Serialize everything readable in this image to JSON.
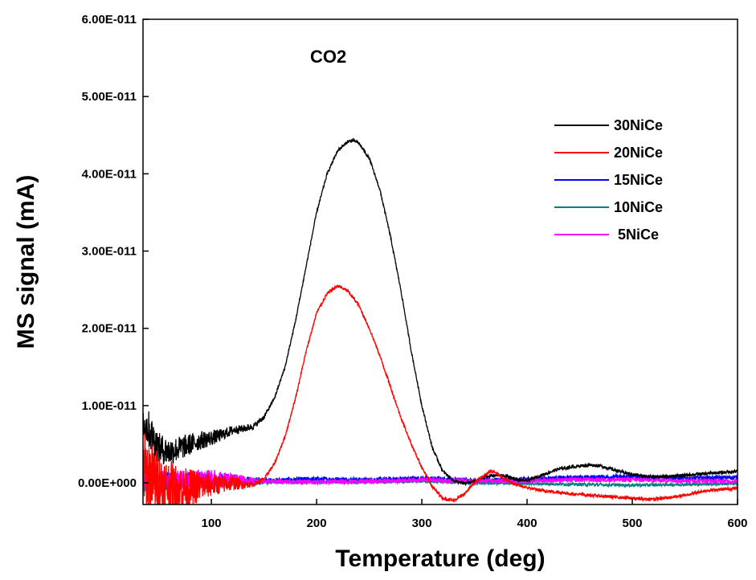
{
  "chart_data": {
    "type": "line",
    "xlabel": "Temperature (deg)",
    "ylabel": "MS signal (mA)",
    "annotation": "CO2",
    "xlim": [
      35,
      600
    ],
    "ylim": [
      -2.8e-12,
      6e-11
    ],
    "x_ticks": [
      100,
      200,
      300,
      400,
      500,
      600
    ],
    "y_ticks": [
      0,
      1e-11,
      2e-11,
      3e-11,
      4e-11,
      5e-11,
      6e-11
    ],
    "y_tick_labels": [
      "0.00E+000",
      "1.00E-011",
      "2.00E-011",
      "3.00E-011",
      "4.00E-011",
      "5.00E-011",
      "6.00E-011"
    ],
    "x_tick_labels": [
      "100",
      "200",
      "300",
      "400",
      "500",
      "600"
    ],
    "grid": false,
    "legend_position": "top-right",
    "series": [
      {
        "name": "30NiCe",
        "color": "#000000",
        "x": [
          35,
          40,
          50,
          60,
          70,
          80,
          90,
          100,
          110,
          120,
          130,
          140,
          150,
          160,
          170,
          180,
          190,
          200,
          210,
          220,
          230,
          235,
          240,
          250,
          260,
          270,
          280,
          290,
          300,
          310,
          320,
          330,
          340,
          350,
          360,
          370,
          380,
          390,
          400,
          410,
          420,
          430,
          440,
          450,
          460,
          470,
          480,
          490,
          500,
          510,
          520,
          530,
          540,
          550,
          560,
          570,
          580,
          590,
          600
        ],
        "y": [
          8e-12,
          7e-12,
          4.5e-12,
          4e-12,
          4.5e-12,
          5e-12,
          5.5e-12,
          5.8e-12,
          6.2e-12,
          6.8e-12,
          7e-12,
          7.3e-12,
          8.5e-12,
          1.1e-11,
          1.5e-11,
          2.1e-11,
          2.8e-11,
          3.5e-11,
          4e-11,
          4.3e-11,
          4.42e-11,
          4.43e-11,
          4.4e-11,
          4.2e-11,
          3.8e-11,
          3.2e-11,
          2.5e-11,
          1.7e-11,
          1e-11,
          4.5e-12,
          1.5e-12,
          3e-13,
          -1e-13,
          2e-13,
          8e-13,
          1e-12,
          9e-13,
          4e-13,
          3e-13,
          8e-13,
          1.3e-12,
          1.8e-12,
          2e-12,
          2.2e-12,
          2.3e-12,
          2.2e-12,
          1.8e-12,
          1.4e-12,
          1.1e-12,
          9e-13,
          8e-13,
          8e-13,
          9e-13,
          1e-12,
          1.1e-12,
          1.2e-12,
          1.3e-12,
          1.4e-12,
          1.5e-12
        ],
        "noise": [
          2.5e-12,
          2.5e-12,
          2e-12,
          1.8e-12,
          1.6e-12,
          1.4e-12,
          1.2e-12,
          1e-12,
          8e-13,
          6e-13,
          5e-13,
          4e-13,
          3e-13,
          2e-13,
          2e-13,
          2e-13,
          2e-13,
          2e-13,
          2e-13,
          2e-13,
          2e-13,
          2e-13,
          2e-13,
          2e-13,
          2e-13,
          2e-13,
          2e-13,
          2e-13,
          2e-13,
          2e-13,
          2e-13,
          2e-13,
          2e-13,
          2e-13,
          2e-13,
          2e-13,
          2e-13,
          2e-13,
          2e-13,
          2e-13,
          2e-13,
          2e-13,
          2e-13,
          2e-13,
          2e-13,
          2e-13,
          2e-13,
          2e-13,
          2e-13,
          2e-13,
          2e-13,
          2e-13,
          2e-13,
          2e-13,
          2e-13,
          2e-13,
          2e-13,
          2e-13,
          2e-13
        ]
      },
      {
        "name": "20NiCe",
        "color": "#ff0000",
        "x": [
          35,
          40,
          50,
          60,
          70,
          80,
          90,
          100,
          110,
          120,
          130,
          140,
          150,
          160,
          170,
          180,
          190,
          200,
          210,
          220,
          230,
          240,
          250,
          260,
          270,
          280,
          290,
          300,
          310,
          320,
          330,
          340,
          350,
          360,
          365,
          370,
          380,
          390,
          400,
          410,
          420,
          430,
          440,
          450,
          460,
          470,
          480,
          490,
          500,
          510,
          520,
          530,
          540,
          550,
          560,
          570,
          580,
          590,
          600
        ],
        "y": [
          2e-12,
          1e-12,
          0,
          -5e-13,
          -8e-13,
          -7e-13,
          -4e-13,
          -3e-13,
          -2e-13,
          0,
          -2e-13,
          -2e-13,
          5e-13,
          2.5e-12,
          6e-12,
          1.1e-11,
          1.7e-11,
          2.2e-11,
          2.45e-11,
          2.55e-11,
          2.48e-11,
          2.3e-11,
          2e-11,
          1.65e-11,
          1.25e-11,
          8.5e-12,
          5e-12,
          2e-12,
          -5e-13,
          -2e-12,
          -2.3e-12,
          -1.5e-12,
          0,
          1e-12,
          1.5e-12,
          1.3e-12,
          4e-13,
          -3e-13,
          -6e-13,
          -9e-13,
          -1.1e-12,
          -1.2e-12,
          -1.4e-12,
          -1.5e-12,
          -1.6e-12,
          -1.7e-12,
          -1.8e-12,
          -1.9e-12,
          -2e-12,
          -2.1e-12,
          -2.1e-12,
          -2e-12,
          -1.8e-12,
          -1.6e-12,
          -1.3e-12,
          -1e-12,
          -9e-13,
          -8e-13,
          -7e-13
        ],
        "noise": [
          5e-12,
          5e-12,
          4e-12,
          3.5e-12,
          3e-12,
          2.5e-12,
          2e-12,
          1.5e-12,
          1.2e-12,
          1e-12,
          6e-13,
          3e-13,
          2e-13,
          2e-13,
          2e-13,
          2e-13,
          2e-13,
          2e-13,
          2e-13,
          2e-13,
          2e-13,
          2e-13,
          2e-13,
          2e-13,
          2e-13,
          2e-13,
          2e-13,
          2e-13,
          2e-13,
          2e-13,
          2e-13,
          2e-13,
          2e-13,
          2e-13,
          2e-13,
          2e-13,
          2e-13,
          2e-13,
          2e-13,
          2e-13,
          2e-13,
          2e-13,
          2e-13,
          2e-13,
          2e-13,
          2e-13,
          2e-13,
          2e-13,
          2e-13,
          2e-13,
          2e-13,
          2e-13,
          2e-13,
          2e-13,
          2e-13,
          2e-13,
          2e-13,
          2e-13,
          2e-13
        ]
      },
      {
        "name": "15NiCe",
        "color": "#0000ff",
        "x": [
          35,
          50,
          100,
          150,
          200,
          250,
          300,
          350,
          400,
          450,
          500,
          550,
          600
        ],
        "y": [
          0,
          2e-13,
          4e-13,
          3e-13,
          5e-13,
          4e-13,
          6e-13,
          3e-13,
          5e-13,
          7e-13,
          8e-13,
          6e-13,
          7e-13
        ],
        "noise": [
          1.2e-12,
          1.2e-12,
          1e-12,
          3e-13,
          3e-13,
          3e-13,
          3e-13,
          3e-13,
          3e-13,
          3e-13,
          3e-13,
          3e-13,
          3e-13
        ]
      },
      {
        "name": "10NiCe",
        "color": "#008080",
        "x": [
          35,
          50,
          100,
          150,
          200,
          250,
          300,
          350,
          400,
          450,
          500,
          550,
          600
        ],
        "y": [
          -2e-13,
          -1e-13,
          0,
          1e-13,
          1e-13,
          1e-13,
          2e-13,
          0,
          -1e-13,
          -2e-13,
          -3e-13,
          -2e-13,
          -1e-13
        ],
        "noise": [
          1e-12,
          1e-12,
          9e-13,
          3e-13,
          2e-13,
          2e-13,
          2e-13,
          2e-13,
          2e-13,
          2e-13,
          2e-13,
          2e-13,
          2e-13
        ]
      },
      {
        "name": " 5NiCe",
        "color": "#ff00ff",
        "x": [
          35,
          50,
          100,
          150,
          200,
          250,
          300,
          350,
          400,
          450,
          500,
          550,
          600
        ],
        "y": [
          2e-13,
          3e-13,
          5e-13,
          2e-13,
          1e-13,
          2e-13,
          4e-13,
          2e-13,
          3e-13,
          4e-13,
          4e-13,
          3e-13,
          2e-13
        ],
        "noise": [
          1.4e-12,
          1.4e-12,
          1.2e-12,
          3e-13,
          3e-13,
          3e-13,
          3e-13,
          3e-13,
          3e-13,
          3e-13,
          3e-13,
          3e-13,
          3e-13
        ]
      }
    ]
  }
}
